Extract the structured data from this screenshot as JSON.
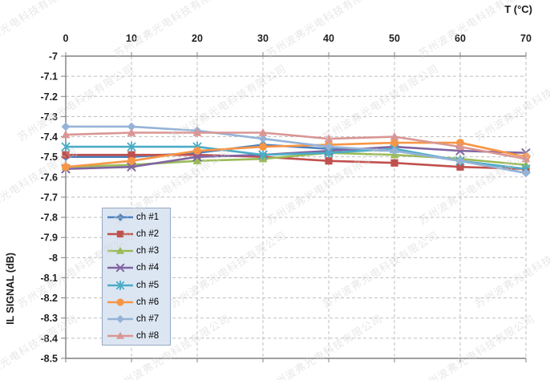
{
  "watermark": {
    "text": "苏州波弗光电科技有限公司",
    "color": "#d4d4d4"
  },
  "colors": {
    "gridline": "#bfbfbf",
    "axis_line": "#808080",
    "tick_label": "#1f1f1f",
    "legend_bg": "#DCE6F2",
    "legend_border": "#95A9C3"
  },
  "chart_data": {
    "type": "line",
    "title": "",
    "xlabel": "T (°C)",
    "ylabel": "IL SIGNAL (dB)",
    "x": [
      0,
      10,
      20,
      30,
      40,
      50,
      60,
      70
    ],
    "x_ticks": [
      "0",
      "10",
      "20",
      "30",
      "40",
      "50",
      "60",
      "70"
    ],
    "y_ticks": [
      "-7",
      "-7.1",
      "-7.2",
      "-7.3",
      "-7.4",
      "-7.5",
      "-7.6",
      "-7.7",
      "-7.8",
      "-7.9",
      "-8",
      "-8.1",
      "-8.2",
      "-8.3",
      "-8.4",
      "-8.5"
    ],
    "xlim": [
      0,
      70
    ],
    "ylim": [
      -8.5,
      -7
    ],
    "grid": "dashed-both-axes",
    "legend_position": "inside-left",
    "series": [
      {
        "name": "ch #1",
        "color": "#4F81BD",
        "marker": "diamond",
        "values": [
          -7.5,
          -7.5,
          -7.48,
          -7.44,
          -7.46,
          -7.47,
          -7.52,
          -7.58
        ]
      },
      {
        "name": "ch #2",
        "color": "#C0504D",
        "marker": "square",
        "values": [
          -7.49,
          -7.49,
          -7.49,
          -7.5,
          -7.52,
          -7.53,
          -7.55,
          -7.56
        ]
      },
      {
        "name": "ch #3",
        "color": "#9BBB59",
        "marker": "triangle",
        "values": [
          -7.55,
          -7.54,
          -7.52,
          -7.51,
          -7.48,
          -7.49,
          -7.51,
          -7.54
        ]
      },
      {
        "name": "ch #4",
        "color": "#8064A2",
        "marker": "x",
        "values": [
          -7.56,
          -7.55,
          -7.5,
          -7.49,
          -7.47,
          -7.45,
          -7.47,
          -7.48
        ]
      },
      {
        "name": "ch #5",
        "color": "#4BACC6",
        "marker": "asterisk",
        "values": [
          -7.45,
          -7.45,
          -7.45,
          -7.49,
          -7.48,
          -7.46,
          -7.52,
          -7.56
        ]
      },
      {
        "name": "ch #6",
        "color": "#F79646",
        "marker": "circle",
        "values": [
          -7.55,
          -7.52,
          -7.47,
          -7.45,
          -7.44,
          -7.43,
          -7.43,
          -7.5
        ]
      },
      {
        "name": "ch #7",
        "color": "#95B3D7",
        "marker": "diamond",
        "values": [
          -7.35,
          -7.35,
          -7.37,
          -7.41,
          -7.45,
          -7.47,
          -7.52,
          -7.58
        ]
      },
      {
        "name": "ch #8",
        "color": "#D99694",
        "marker": "triangle",
        "values": [
          -7.39,
          -7.38,
          -7.38,
          -7.38,
          -7.41,
          -7.4,
          -7.45,
          -7.51
        ]
      }
    ]
  }
}
